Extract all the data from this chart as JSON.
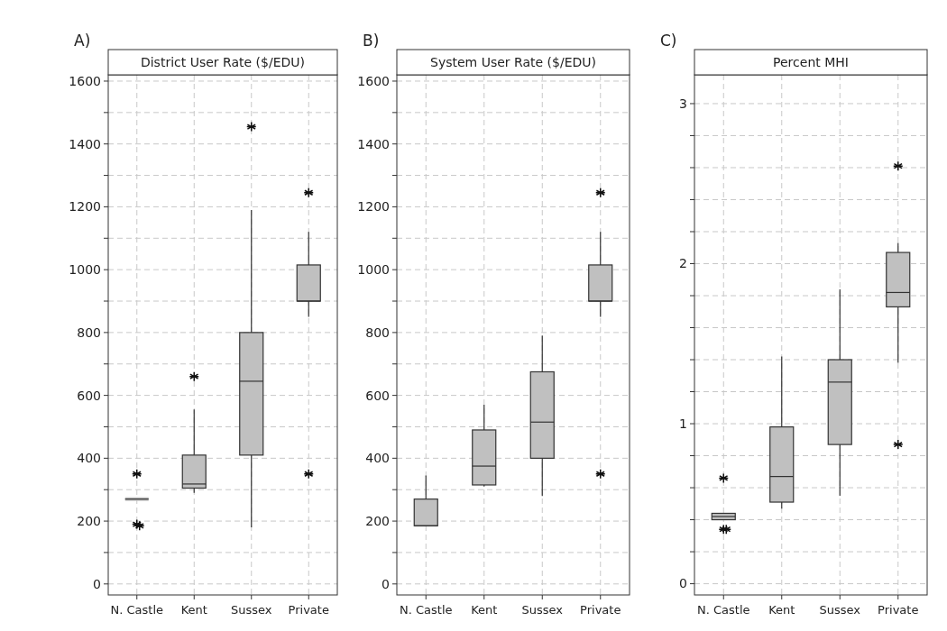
{
  "chart_data": [
    {
      "type": "box",
      "title": "District User Rate ($/EDU)",
      "annotations": [
        "A)"
      ],
      "categories": [
        "N. Castle",
        "Kent",
        "Sussex",
        "Private"
      ],
      "ylim": [
        -35,
        1620
      ],
      "yticks": [
        0,
        {
          "value": 100,
          "label": null
        },
        200,
        {
          "value": 300,
          "label": null
        },
        400,
        {
          "value": 500,
          "label": null
        },
        600,
        {
          "value": 700,
          "label": null
        },
        800,
        {
          "value": 900,
          "label": null
        },
        1000,
        {
          "value": 1100,
          "label": null
        },
        1200,
        {
          "value": 1300,
          "label": null
        },
        1400,
        {
          "value": 1500,
          "label": null
        },
        1600
      ],
      "grid": true,
      "marker": "star",
      "color": "#c0c0c0",
      "boxes": [
        {
          "low": 270,
          "q1": 270,
          "median": 270,
          "q3": 270,
          "high": 270,
          "outliers": [
            350,
            190,
            185
          ]
        },
        {
          "low": 290,
          "q1": 305,
          "median": 318,
          "q3": 410,
          "high": 555,
          "outliers": [
            660
          ]
        },
        {
          "low": 180,
          "q1": 410,
          "median": 645,
          "q3": 800,
          "high": 1190,
          "outliers": [
            1455
          ]
        },
        {
          "low": 850,
          "q1": 900,
          "median": 900,
          "q3": 1015,
          "high": 1120,
          "outliers": [
            1245,
            350
          ]
        }
      ]
    },
    {
      "type": "box",
      "title": "System User Rate ($/EDU)",
      "annotations": [
        "B)"
      ],
      "categories": [
        "N. Castle",
        "Kent",
        "Sussex",
        "Private"
      ],
      "ylim": [
        -35,
        1620
      ],
      "yticks": [
        0,
        {
          "value": 100,
          "label": null
        },
        200,
        {
          "value": 300,
          "label": null
        },
        400,
        {
          "value": 500,
          "label": null
        },
        600,
        {
          "value": 700,
          "label": null
        },
        800,
        {
          "value": 900,
          "label": null
        },
        1000,
        {
          "value": 1100,
          "label": null
        },
        1200,
        {
          "value": 1300,
          "label": null
        },
        1400,
        {
          "value": 1500,
          "label": null
        },
        1600
      ],
      "grid": true,
      "marker": "star",
      "color": "#c0c0c0",
      "boxes": [
        {
          "low": 185,
          "q1": 185,
          "median": 185,
          "q3": 270,
          "high": 345
        },
        {
          "low": 310,
          "q1": 315,
          "median": 375,
          "q3": 490,
          "high": 570
        },
        {
          "low": 280,
          "q1": 400,
          "median": 515,
          "q3": 675,
          "high": 790
        },
        {
          "low": 850,
          "q1": 900,
          "median": 900,
          "q3": 1015,
          "high": 1120,
          "outliers": [
            1245,
            350
          ]
        }
      ]
    },
    {
      "type": "box",
      "title": "Percent MHI",
      "annotations": [
        "C)"
      ],
      "categories": [
        "N. Castle",
        "Kent",
        "Sussex",
        "Private"
      ],
      "ylim": [
        -0.07,
        3.18
      ],
      "yticks": [
        0,
        {
          "value": 0.2,
          "label": null
        },
        {
          "value": 0.4,
          "label": null
        },
        {
          "value": 0.6,
          "label": null
        },
        {
          "value": 0.8,
          "label": null
        },
        1,
        {
          "value": 1.2,
          "label": null
        },
        {
          "value": 1.4,
          "label": null
        },
        {
          "value": 1.6,
          "label": null
        },
        {
          "value": 1.8,
          "label": null
        },
        2,
        {
          "value": 2.2,
          "label": null
        },
        {
          "value": 2.4,
          "label": null
        },
        {
          "value": 2.6,
          "label": null
        },
        {
          "value": 2.8,
          "label": null
        },
        3
      ],
      "grid": true,
      "marker": "star",
      "color": "#c0c0c0",
      "boxes": [
        {
          "low": 0.4,
          "q1": 0.4,
          "median": 0.42,
          "q3": 0.44,
          "high": 0.44,
          "outliers": [
            0.66,
            0.34,
            0.34
          ]
        },
        {
          "low": 0.47,
          "q1": 0.51,
          "median": 0.67,
          "q3": 0.98,
          "high": 1.42
        },
        {
          "low": 0.55,
          "q1": 0.87,
          "median": 1.26,
          "q3": 1.4,
          "high": 1.84
        },
        {
          "low": 1.38,
          "q1": 1.73,
          "median": 1.82,
          "q3": 2.07,
          "high": 2.13,
          "outliers": [
            2.61,
            0.87
          ]
        }
      ]
    }
  ]
}
